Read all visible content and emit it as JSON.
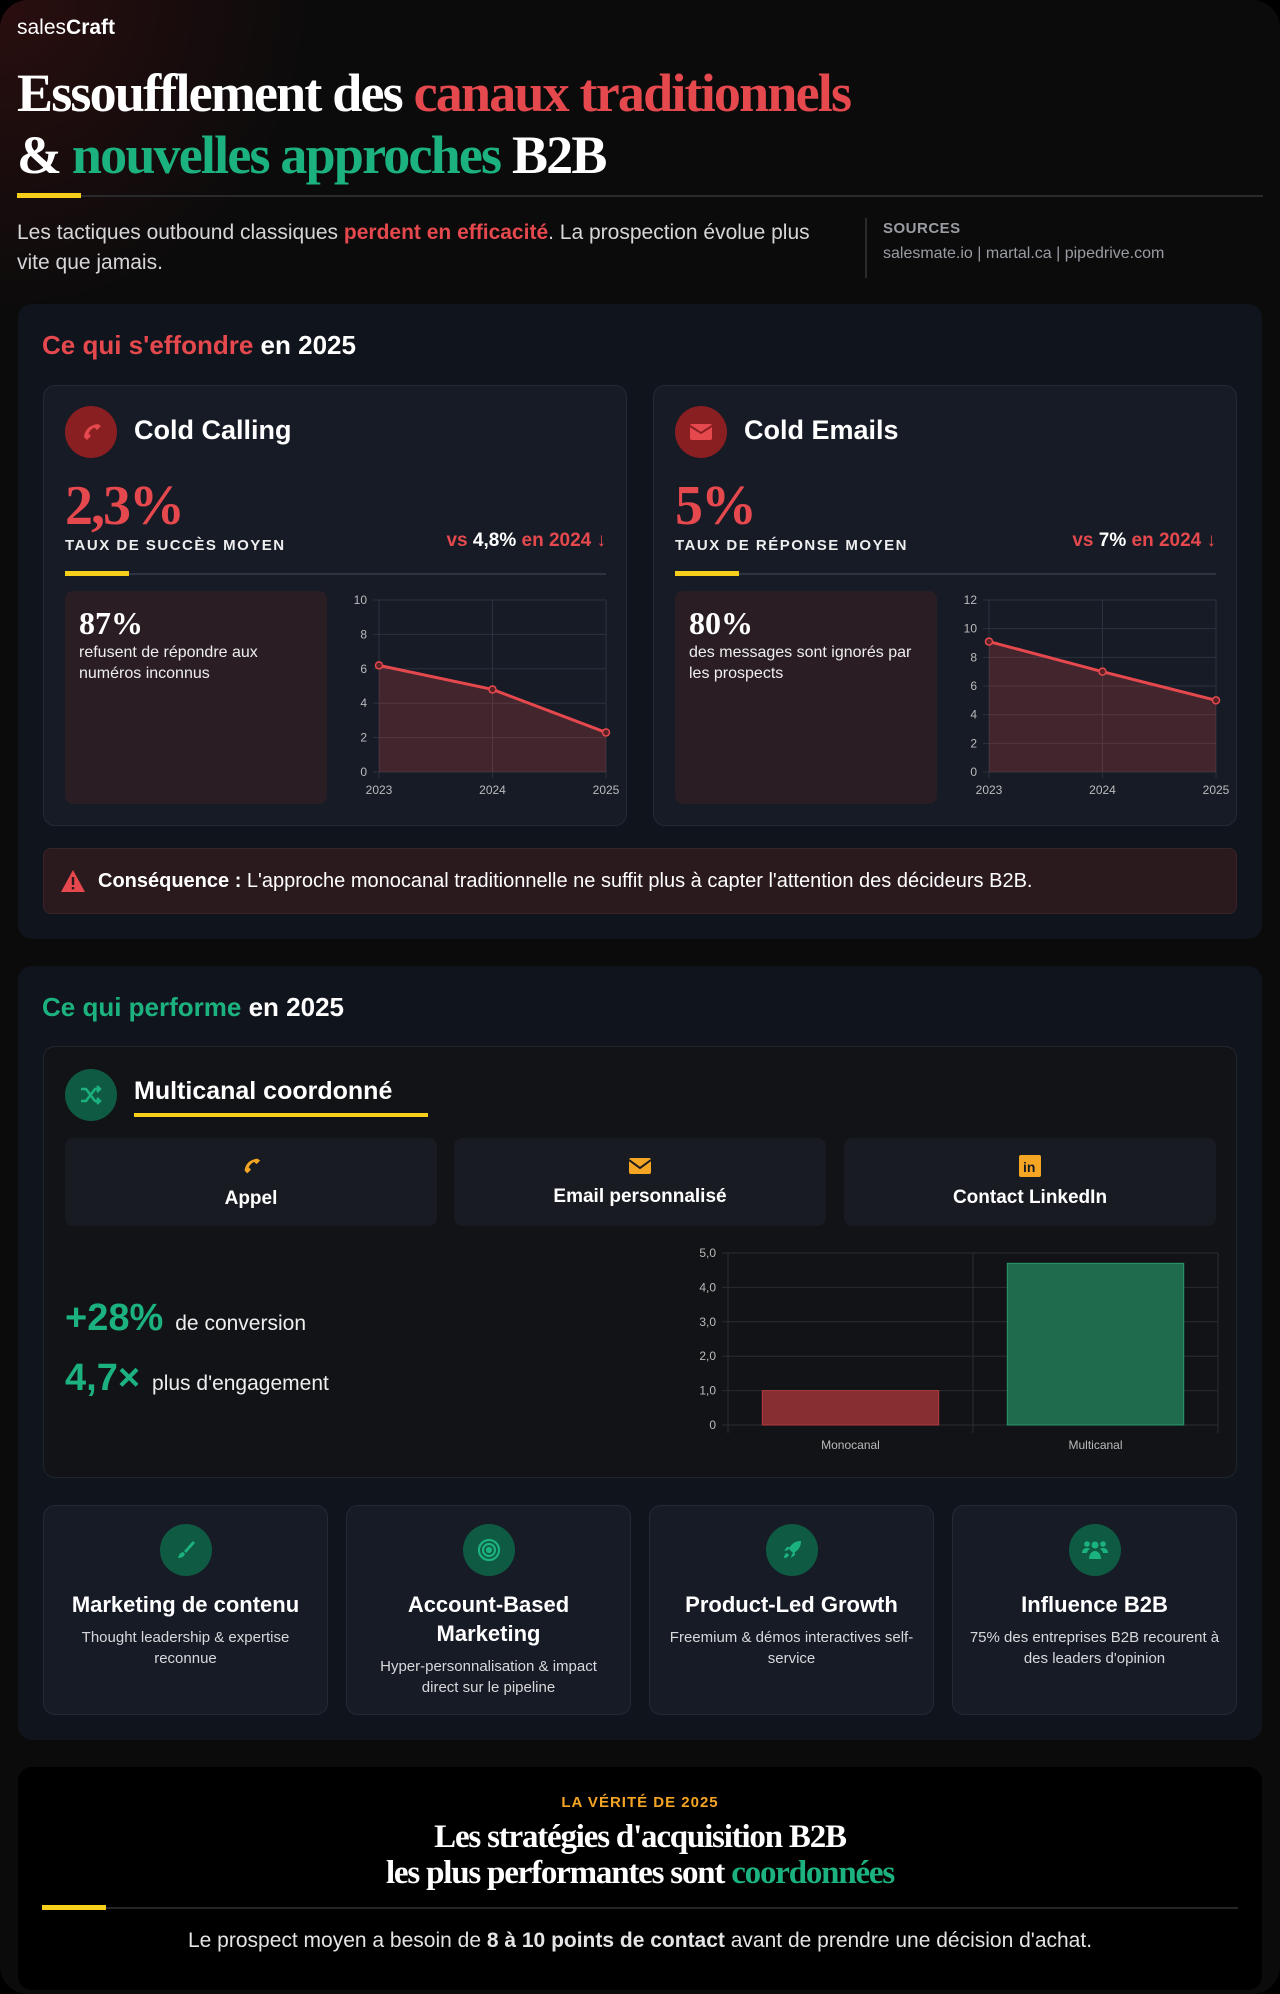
{
  "brand": {
    "light": "sales",
    "bold": "Craft"
  },
  "header": {
    "title_l1_a": "Essoufflement des ",
    "title_l1_b": "canaux traditionnels",
    "title_l2_a": "& ",
    "title_l2_b": "nouvelles approches",
    "title_l2_c": " B2B",
    "subtitle_a": "Les tactiques outbound classiques ",
    "subtitle_b": "perdent en efficacité",
    "subtitle_c": ". La prospection évolue plus vite que jamais.",
    "sources_label": "SOURCES",
    "sources": "salesmate.io | martal.ca | pipedrive.com"
  },
  "decline": {
    "title_a": "Ce qui s'effondre",
    "title_b": " en 2025",
    "cards": [
      {
        "icon": "phone-icon",
        "title": "Cold Calling",
        "value": "2,3%",
        "label": "TAUX DE SUCCÈS MOYEN",
        "vs_a": "vs ",
        "vs_b": "4,8%",
        "vs_c": " en 2024 ↓",
        "stat": "87%",
        "stat_text": "refusent de répondre aux numéros inconnus"
      },
      {
        "icon": "envelope-icon",
        "title": "Cold Emails",
        "value": "5%",
        "label": "TAUX DE RÉPONSE MOYEN",
        "vs_a": "vs ",
        "vs_b": "7%",
        "vs_c": " en 2024 ↓",
        "stat": "80%",
        "stat_text": "des messages sont ignorés par les prospects"
      }
    ],
    "consequence_b": "Conséquence :",
    "consequence": " L'approche monocanal traditionnelle ne suffit plus à capter l'attention des décideurs B2B."
  },
  "perform": {
    "title_a": "Ce qui performe",
    "title_b": " en 2025",
    "multi_title": "Multicanal coordonné",
    "channels": [
      {
        "icon": "phone-icon",
        "label": "Appel"
      },
      {
        "icon": "envelope-icon",
        "label": "Email personnalisé"
      },
      {
        "icon": "linkedin-icon",
        "label": "Contact LinkedIn"
      }
    ],
    "stats": [
      {
        "value": "+28%",
        "text": "de conversion"
      },
      {
        "value": "4,7×",
        "text": "plus d'engagement"
      }
    ],
    "features": [
      {
        "icon": "brush-icon",
        "title": "Marketing de contenu",
        "desc": "Thought leadership & expertise reconnue"
      },
      {
        "icon": "target-icon",
        "title": "Account-Based Marketing",
        "desc": "Hyper-personnalisation & impact direct sur le pipeline"
      },
      {
        "icon": "rocket-icon",
        "title": "Product-Led Growth",
        "desc": "Freemium & démos interactives self-service"
      },
      {
        "icon": "users-icon",
        "title": "Influence B2B",
        "desc": "75% des entreprises B2B recourent à des leaders d'opinion"
      }
    ]
  },
  "truth": {
    "kicker": "LA VÉRITÉ DE 2025",
    "l1": "Les stratégies d'acquisition B2B",
    "l2_a": "les plus performantes sont ",
    "l2_b": "coordonnées",
    "body_a": "Le prospect moyen a besoin de ",
    "body_b": "8 à 10 points de contact",
    "body_c": " avant de prendre une décision d'achat."
  },
  "colors": {
    "red": "#e5484d",
    "green": "#1cb27f",
    "yellow": "#f5cf1a",
    "orange": "#f5a524"
  },
  "chart_data": [
    {
      "type": "line",
      "title": "Cold Calling",
      "categories": [
        "2023",
        "2024",
        "2025"
      ],
      "values": [
        6.2,
        4.8,
        2.3
      ],
      "ylim": [
        0,
        10
      ],
      "yticks": [
        "0",
        "2",
        "4",
        "6",
        "8",
        "10"
      ]
    },
    {
      "type": "line",
      "title": "Cold Emails",
      "categories": [
        "2023",
        "2024",
        "2025"
      ],
      "values": [
        9.1,
        7,
        5
      ],
      "ylim": [
        0,
        12
      ],
      "yticks": [
        "0",
        "2",
        "4",
        "6",
        "8",
        "10",
        "12"
      ]
    },
    {
      "type": "bar",
      "categories": [
        "Monocanal",
        "Multicanal"
      ],
      "values": [
        1.0,
        4.7
      ],
      "ylim": [
        0,
        5
      ],
      "yticks": [
        "0",
        "1,0",
        "2,0",
        "3,0",
        "4,0",
        "5,0"
      ],
      "colors": [
        "#862e32",
        "#1f6b4d"
      ]
    }
  ]
}
